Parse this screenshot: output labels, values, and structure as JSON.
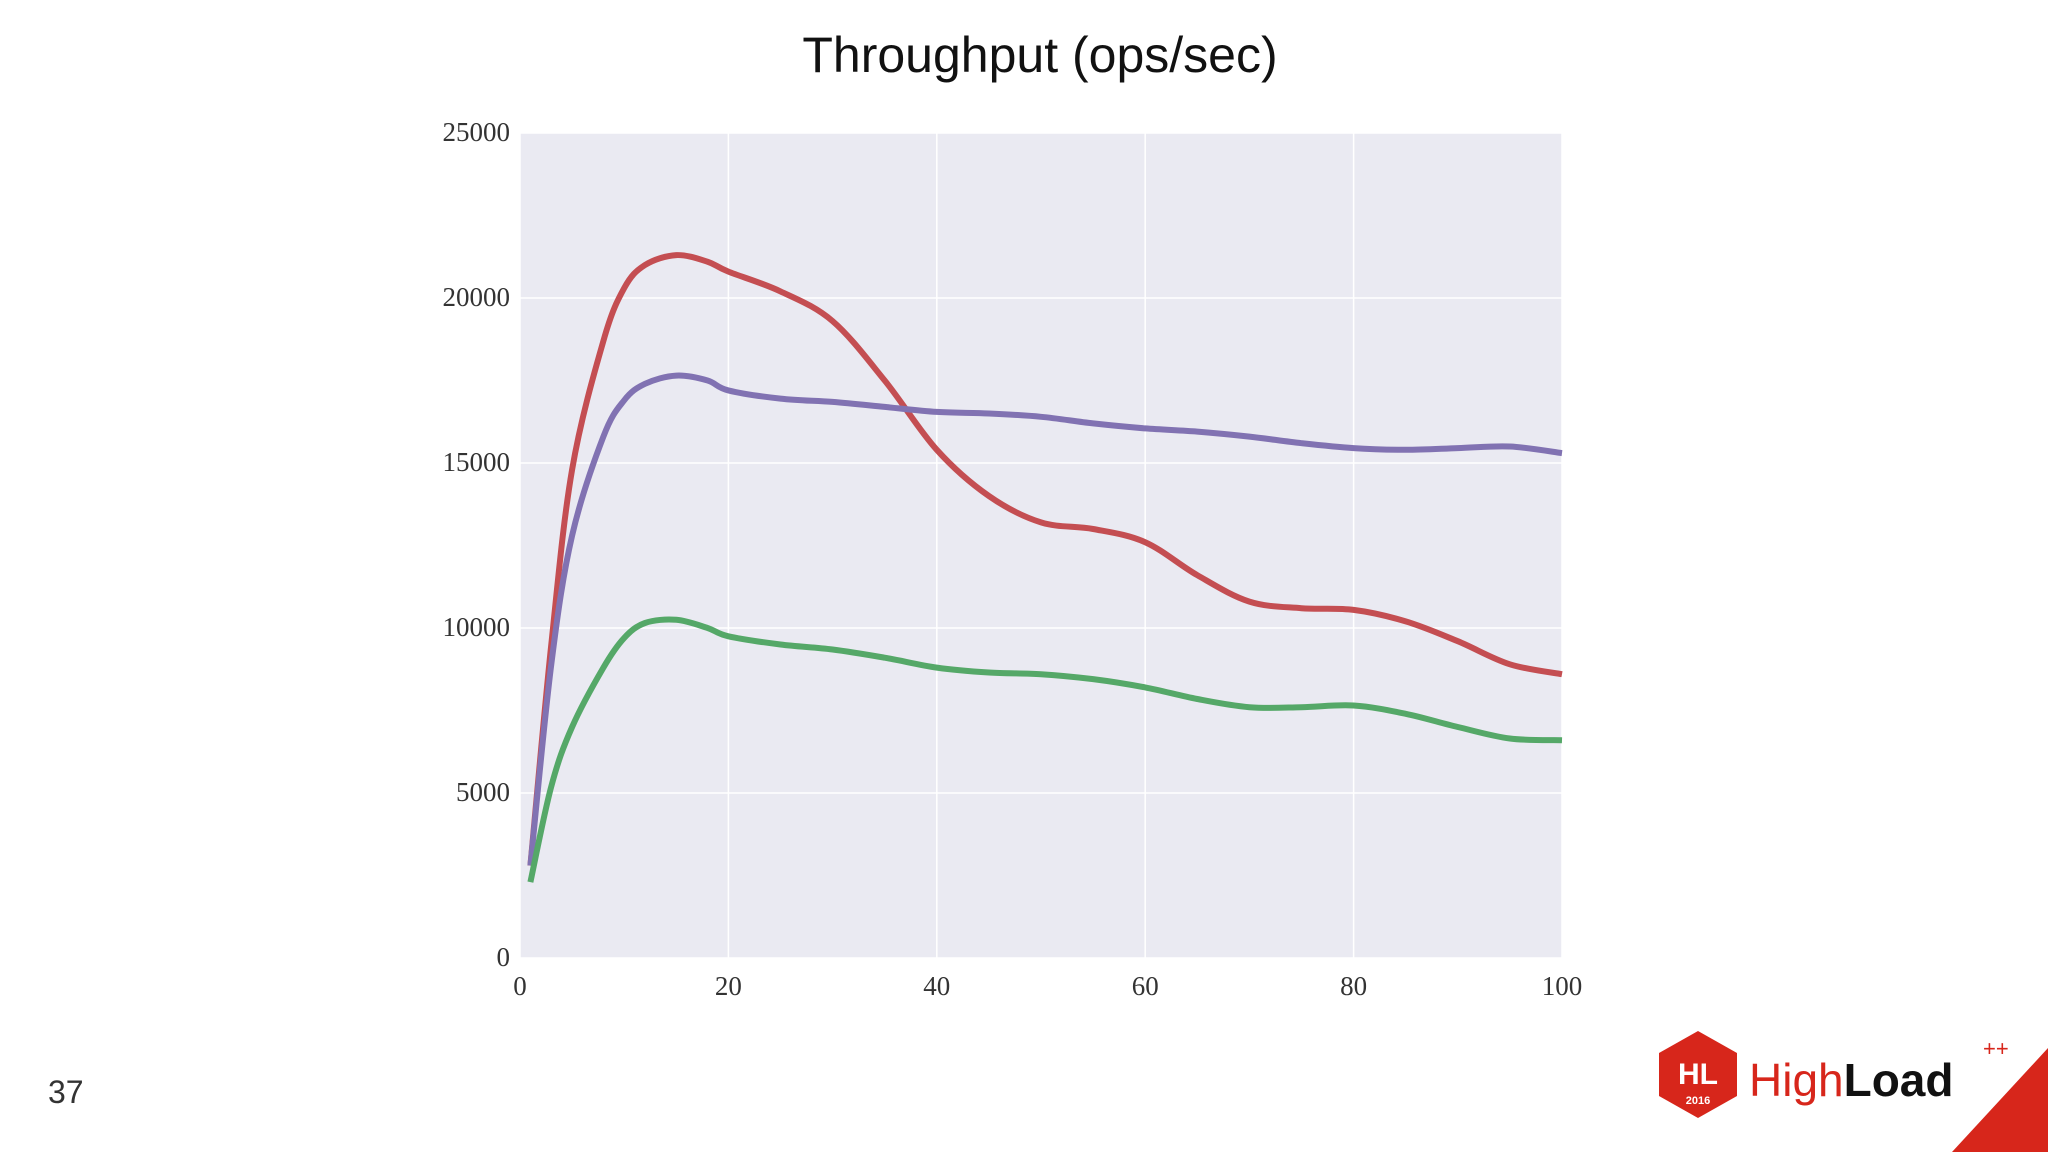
{
  "slide": {
    "page_number": "37",
    "logo": {
      "brand_prefix": "High",
      "brand_suffix": "Load",
      "superscript": "++",
      "badge_letters": "HL",
      "badge_year": "2016",
      "brand_color": "#D7261B"
    }
  },
  "chart_data": {
    "type": "line",
    "title": "Throughput (ops/sec)",
    "xlabel": "",
    "ylabel": "",
    "xlim": [
      0,
      100
    ],
    "ylim": [
      0,
      25000
    ],
    "x_ticks": [
      0,
      20,
      40,
      60,
      80,
      100
    ],
    "y_ticks": [
      0,
      5000,
      10000,
      15000,
      20000,
      25000
    ],
    "grid": true,
    "background": "#EAEAF2",
    "series": [
      {
        "color": "#C44E52",
        "x": [
          1,
          3,
          5,
          8,
          10,
          12,
          15,
          18,
          20,
          25,
          30,
          35,
          40,
          45,
          50,
          55,
          60,
          65,
          70,
          75,
          80,
          85,
          90,
          95,
          100
        ],
        "y": [
          2800,
          9500,
          14800,
          18700,
          20300,
          21000,
          21300,
          21100,
          20800,
          20200,
          19300,
          17500,
          15400,
          14000,
          13200,
          13000,
          12600,
          11600,
          10800,
          10600,
          10550,
          10200,
          9600,
          8900,
          8600
        ]
      },
      {
        "color": "#8172B2",
        "x": [
          1,
          3,
          5,
          8,
          10,
          12,
          15,
          18,
          20,
          25,
          30,
          35,
          40,
          45,
          50,
          55,
          60,
          65,
          70,
          75,
          80,
          85,
          90,
          95,
          100
        ],
        "y": [
          2800,
          8900,
          12800,
          15800,
          16900,
          17400,
          17650,
          17500,
          17200,
          16950,
          16850,
          16700,
          16550,
          16500,
          16400,
          16200,
          16050,
          15950,
          15800,
          15600,
          15450,
          15400,
          15450,
          15500,
          15300
        ]
      },
      {
        "color": "#55A868",
        "x": [
          1,
          3,
          5,
          8,
          10,
          12,
          15,
          18,
          20,
          25,
          30,
          35,
          40,
          45,
          50,
          55,
          60,
          65,
          70,
          75,
          80,
          85,
          90,
          95,
          100
        ],
        "y": [
          2300,
          5200,
          7000,
          8800,
          9700,
          10150,
          10250,
          10000,
          9750,
          9500,
          9350,
          9100,
          8800,
          8650,
          8600,
          8450,
          8200,
          7850,
          7600,
          7600,
          7650,
          7400,
          7000,
          6650,
          6600
        ]
      }
    ]
  }
}
